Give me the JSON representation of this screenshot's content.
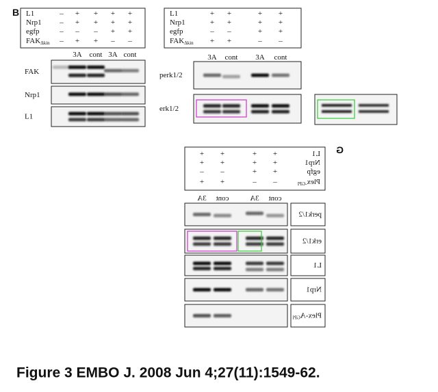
{
  "panels": [
    {
      "letter": "B",
      "rows": [
        {
          "label": "L1",
          "signs": [
            "–",
            "+",
            "+",
            "+",
            "+"
          ]
        },
        {
          "label": "Nrp1",
          "signs": [
            "–",
            "+",
            "+",
            "+",
            "+"
          ]
        },
        {
          "label": "egfp",
          "signs": [
            "–",
            "–",
            "–",
            "+",
            "+"
          ]
        },
        {
          "label": "FAK",
          "subscript": "Δkin",
          "signs": [
            "–",
            "+",
            "+",
            "–",
            "–"
          ]
        }
      ],
      "columns": [
        "3A",
        "cont",
        "3A",
        "cont"
      ],
      "blots": [
        {
          "label": "FAK"
        },
        {
          "label": "Nrp1"
        },
        {
          "label": "L1"
        }
      ]
    },
    {
      "rows": [
        {
          "label": "L1",
          "signs": [
            "+",
            "+",
            "+",
            "+"
          ]
        },
        {
          "label": "Nrp1",
          "signs": [
            "+",
            "+",
            "+",
            "+"
          ]
        },
        {
          "label": "egfp",
          "signs": [
            "–",
            "–",
            "+",
            "+"
          ]
        },
        {
          "label": "FAK",
          "subscript": "Δkin",
          "signs": [
            "+",
            "+",
            "–",
            "–"
          ]
        }
      ],
      "columns": [
        "3A",
        "cont",
        "3A",
        "cont"
      ],
      "blots": [
        {
          "label": "perk1/2"
        },
        {
          "label": "erk1/2"
        }
      ]
    },
    {
      "letter": "G",
      "rows": [
        {
          "label": "L1",
          "signs": [
            "+",
            "+",
            "+",
            "+"
          ]
        },
        {
          "label": "Nrp1",
          "signs": [
            "+",
            "+",
            "+",
            "+"
          ]
        },
        {
          "label": "egfp",
          "signs": [
            "–",
            "–",
            "+",
            "+"
          ]
        },
        {
          "label": "Plex",
          "subscript": "-GPI",
          "signs": [
            "+",
            "+",
            "–",
            "–"
          ]
        }
      ],
      "columns": [
        "3A",
        "cont",
        "3A",
        "cont"
      ],
      "blots": [
        {
          "label": "perk1/2"
        },
        {
          "label": "erk1/2"
        },
        {
          "label": "L1"
        },
        {
          "label": "Nrp1"
        },
        {
          "label": "Plex-A",
          "subscript": "GPI"
        }
      ]
    }
  ],
  "caption": "Figure 3 EMBO J. 2008 Jun 4;27(11):1549-62."
}
